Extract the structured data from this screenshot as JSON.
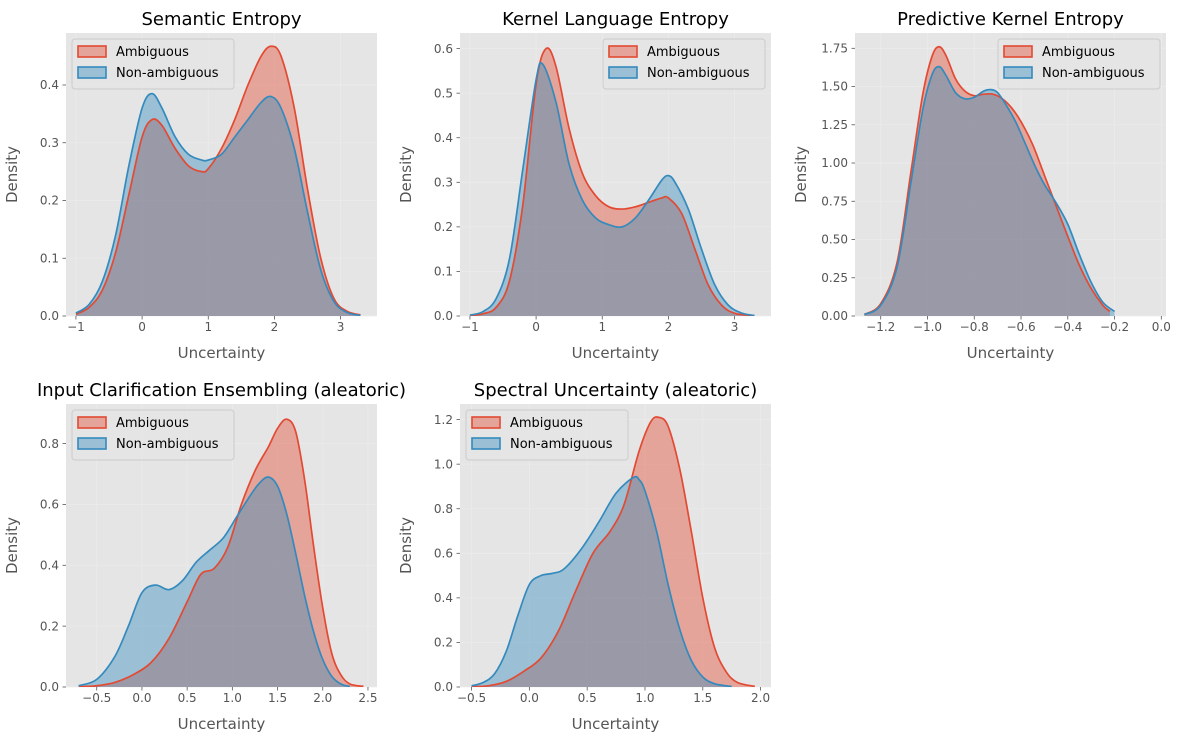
{
  "figure": {
    "colors": {
      "ambiguous_line": "#E24A33",
      "ambiguous_fill": "#E24A33",
      "non_ambiguous_line": "#348ABD",
      "non_ambiguous_fill": "#348ABD",
      "panel_bg": "#E5E5E5",
      "grid": "#EBEBEB",
      "text": "#555555"
    }
  },
  "chart_data": [
    {
      "type": "area",
      "title": "Semantic Entropy",
      "xlabel": "Uncertainty",
      "ylabel": "Density",
      "xlim": [
        -1.15,
        3.55
      ],
      "ylim": [
        0,
        0.49
      ],
      "xticks": [
        -1,
        0,
        1,
        2,
        3
      ],
      "xtick_labels": [
        "−1",
        "0",
        "1",
        "2",
        "3"
      ],
      "yticks": [
        0,
        0.1,
        0.2,
        0.3,
        0.4
      ],
      "ytick_labels": [
        "0.0",
        "0.1",
        "0.2",
        "0.3",
        "0.4"
      ],
      "legend": {
        "placement": "upper-left",
        "labels": [
          "Ambiguous",
          "Non-ambiguous"
        ]
      },
      "series": [
        {
          "name": "Ambiguous",
          "x": [
            -1,
            -0.8,
            -0.6,
            -0.4,
            -0.2,
            0,
            0.15,
            0.3,
            0.5,
            0.7,
            0.9,
            1.0,
            1.2,
            1.4,
            1.6,
            1.8,
            1.95,
            2.1,
            2.3,
            2.5,
            2.7,
            2.9,
            3.1,
            3.3
          ],
          "y": [
            0.003,
            0.015,
            0.045,
            0.11,
            0.21,
            0.31,
            0.34,
            0.33,
            0.29,
            0.26,
            0.25,
            0.255,
            0.29,
            0.34,
            0.4,
            0.45,
            0.467,
            0.45,
            0.36,
            0.22,
            0.1,
            0.03,
            0.008,
            0.002
          ]
        },
        {
          "name": "Non-ambiguous",
          "x": [
            -1,
            -0.8,
            -0.6,
            -0.4,
            -0.2,
            0,
            0.15,
            0.3,
            0.5,
            0.7,
            0.9,
            1.0,
            1.2,
            1.4,
            1.6,
            1.8,
            1.95,
            2.1,
            2.3,
            2.5,
            2.7,
            2.9,
            3.1,
            3.3
          ],
          "y": [
            0.005,
            0.02,
            0.06,
            0.14,
            0.26,
            0.36,
            0.385,
            0.36,
            0.31,
            0.28,
            0.27,
            0.27,
            0.28,
            0.31,
            0.34,
            0.37,
            0.38,
            0.36,
            0.29,
            0.18,
            0.08,
            0.025,
            0.006,
            0.001
          ]
        }
      ]
    },
    {
      "type": "area",
      "title": "Kernel Language Entropy",
      "xlabel": "Uncertainty",
      "ylabel": "Density",
      "xlim": [
        -1.15,
        3.55
      ],
      "ylim": [
        0,
        0.635
      ],
      "xticks": [
        -1,
        0,
        1,
        2,
        3
      ],
      "xtick_labels": [
        "−1",
        "0",
        "1",
        "2",
        "3"
      ],
      "yticks": [
        0,
        0.1,
        0.2,
        0.3,
        0.4,
        0.5,
        0.6
      ],
      "ytick_labels": [
        "0.0",
        "0.1",
        "0.2",
        "0.3",
        "0.4",
        "0.5",
        "0.6"
      ],
      "legend": {
        "placement": "upper-right",
        "labels": [
          "Ambiguous",
          "Non-ambiguous"
        ]
      },
      "series": [
        {
          "name": "Ambiguous",
          "x": [
            -1,
            -0.8,
            -0.6,
            -0.4,
            -0.2,
            0,
            0.15,
            0.3,
            0.5,
            0.7,
            0.9,
            1.1,
            1.3,
            1.5,
            1.7,
            1.9,
            2.0,
            2.2,
            2.4,
            2.6,
            2.8,
            3.0,
            3.3
          ],
          "y": [
            0.001,
            0.005,
            0.02,
            0.08,
            0.25,
            0.52,
            0.6,
            0.56,
            0.42,
            0.32,
            0.27,
            0.245,
            0.24,
            0.245,
            0.255,
            0.265,
            0.265,
            0.23,
            0.15,
            0.07,
            0.025,
            0.006,
            0.001
          ]
        },
        {
          "name": "Non-ambiguous",
          "x": [
            -1,
            -0.8,
            -0.6,
            -0.4,
            -0.2,
            0,
            0.1,
            0.3,
            0.5,
            0.7,
            0.9,
            1.1,
            1.3,
            1.5,
            1.7,
            1.9,
            2.0,
            2.1,
            2.3,
            2.5,
            2.7,
            2.9,
            3.1,
            3.3
          ],
          "y": [
            0.002,
            0.01,
            0.04,
            0.13,
            0.33,
            0.53,
            0.565,
            0.48,
            0.34,
            0.26,
            0.22,
            0.205,
            0.2,
            0.22,
            0.26,
            0.305,
            0.315,
            0.3,
            0.24,
            0.15,
            0.07,
            0.025,
            0.007,
            0.001
          ]
        }
      ]
    },
    {
      "type": "area",
      "title": "Predictive Kernel Entropy",
      "xlabel": "Uncertainty",
      "ylabel": "Density",
      "xlim": [
        -1.31,
        0.02
      ],
      "ylim": [
        0,
        1.85
      ],
      "xticks": [
        -1.2,
        -1.0,
        -0.8,
        -0.6,
        -0.4,
        -0.2,
        0.0
      ],
      "xtick_labels": [
        "−1.2",
        "−1.0",
        "−0.8",
        "−0.6",
        "−0.4",
        "−0.2",
        "0.0"
      ],
      "yticks": [
        0,
        0.25,
        0.5,
        0.75,
        1.0,
        1.25,
        1.5,
        1.75
      ],
      "ytick_labels": [
        "0.00",
        "0.25",
        "0.50",
        "0.75",
        "1.00",
        "1.25",
        "1.50",
        "1.75"
      ],
      "legend": {
        "placement": "upper-right",
        "labels": [
          "Ambiguous",
          "Non-ambiguous"
        ]
      },
      "series": [
        {
          "name": "Ambiguous",
          "x": [
            -1.27,
            -1.2,
            -1.13,
            -1.07,
            -1.02,
            -0.98,
            -0.95,
            -0.92,
            -0.88,
            -0.84,
            -0.8,
            -0.76,
            -0.72,
            -0.68,
            -0.64,
            -0.6,
            -0.55,
            -0.5,
            -0.45,
            -0.4,
            -0.35,
            -0.3,
            -0.25,
            -0.22
          ],
          "y": [
            0.01,
            0.08,
            0.35,
            0.95,
            1.45,
            1.7,
            1.76,
            1.7,
            1.55,
            1.47,
            1.44,
            1.45,
            1.45,
            1.42,
            1.36,
            1.27,
            1.12,
            0.92,
            0.72,
            0.52,
            0.33,
            0.18,
            0.07,
            0.03
          ]
        },
        {
          "name": "Non-ambiguous",
          "x": [
            -1.27,
            -1.2,
            -1.13,
            -1.07,
            -1.02,
            -0.98,
            -0.95,
            -0.92,
            -0.88,
            -0.84,
            -0.8,
            -0.76,
            -0.73,
            -0.7,
            -0.66,
            -0.62,
            -0.58,
            -0.54,
            -0.5,
            -0.45,
            -0.4,
            -0.35,
            -0.3,
            -0.25,
            -0.2
          ],
          "y": [
            0.01,
            0.07,
            0.32,
            0.88,
            1.35,
            1.58,
            1.63,
            1.57,
            1.46,
            1.42,
            1.43,
            1.47,
            1.48,
            1.46,
            1.37,
            1.26,
            1.12,
            0.98,
            0.86,
            0.74,
            0.6,
            0.4,
            0.22,
            0.09,
            0.03
          ]
        }
      ]
    },
    {
      "type": "area",
      "title": "Input Clarification Ensembling (aleatoric)",
      "xlabel": "Uncertainty",
      "ylabel": "Density",
      "xlim": [
        -0.84,
        2.6
      ],
      "ylim": [
        0,
        0.93
      ],
      "xticks": [
        -0.5,
        0,
        0.5,
        1.0,
        1.5,
        2.0,
        2.5
      ],
      "xtick_labels": [
        "−0.5",
        "0.0",
        "0.5",
        "1.0",
        "1.5",
        "2.0",
        "2.5"
      ],
      "yticks": [
        0,
        0.2,
        0.4,
        0.6,
        0.8
      ],
      "ytick_labels": [
        "0.0",
        "0.2",
        "0.4",
        "0.6",
        "0.8"
      ],
      "legend": {
        "placement": "upper-left",
        "labels": [
          "Ambiguous",
          "Non-ambiguous"
        ]
      },
      "series": [
        {
          "name": "Ambiguous",
          "x": [
            -0.7,
            -0.5,
            -0.3,
            -0.1,
            0.1,
            0.3,
            0.5,
            0.65,
            0.8,
            0.95,
            1.1,
            1.25,
            1.4,
            1.5,
            1.6,
            1.7,
            1.8,
            1.9,
            2.0,
            2.1,
            2.2,
            2.3,
            2.45
          ],
          "y": [
            0.001,
            0.004,
            0.015,
            0.04,
            0.08,
            0.16,
            0.28,
            0.37,
            0.39,
            0.46,
            0.6,
            0.71,
            0.79,
            0.85,
            0.88,
            0.84,
            0.68,
            0.46,
            0.26,
            0.11,
            0.04,
            0.01,
            0.002
          ]
        },
        {
          "name": "Non-ambiguous",
          "x": [
            -0.7,
            -0.5,
            -0.3,
            -0.15,
            0.0,
            0.15,
            0.3,
            0.45,
            0.6,
            0.75,
            0.9,
            1.05,
            1.2,
            1.3,
            1.4,
            1.5,
            1.6,
            1.7,
            1.8,
            1.9,
            2.0,
            2.1,
            2.2,
            2.3
          ],
          "y": [
            0.004,
            0.025,
            0.1,
            0.2,
            0.31,
            0.335,
            0.32,
            0.35,
            0.41,
            0.45,
            0.49,
            0.56,
            0.63,
            0.67,
            0.69,
            0.66,
            0.57,
            0.44,
            0.3,
            0.18,
            0.09,
            0.035,
            0.01,
            0.002
          ]
        }
      ]
    },
    {
      "type": "area",
      "title": "Spectral Uncertainty (aleatoric)",
      "xlabel": "Uncertainty",
      "ylabel": "Density",
      "xlim": [
        -0.6,
        2.09
      ],
      "ylim": [
        0,
        1.27
      ],
      "xticks": [
        -0.5,
        0,
        0.5,
        1.0,
        1.5,
        2.0
      ],
      "xtick_labels": [
        "−0.5",
        "0.0",
        "0.5",
        "1.0",
        "1.5",
        "2.0"
      ],
      "yticks": [
        0,
        0.2,
        0.4,
        0.6,
        0.8,
        1.0,
        1.2
      ],
      "ytick_labels": [
        "0.0",
        "0.2",
        "0.4",
        "0.6",
        "0.8",
        "1.0",
        "1.2"
      ],
      "legend": {
        "placement": "upper-left",
        "labels": [
          "Ambiguous",
          "Non-ambiguous"
        ]
      },
      "series": [
        {
          "name": "Ambiguous",
          "x": [
            -0.5,
            -0.35,
            -0.2,
            -0.05,
            0.1,
            0.25,
            0.4,
            0.55,
            0.7,
            0.82,
            0.95,
            1.05,
            1.12,
            1.2,
            1.3,
            1.4,
            1.5,
            1.6,
            1.7,
            1.8,
            1.95
          ],
          "y": [
            0.001,
            0.006,
            0.025,
            0.07,
            0.13,
            0.25,
            0.43,
            0.6,
            0.7,
            0.82,
            1.06,
            1.19,
            1.21,
            1.17,
            0.98,
            0.7,
            0.4,
            0.18,
            0.07,
            0.02,
            0.003
          ]
        },
        {
          "name": "Non-ambiguous",
          "x": [
            -0.5,
            -0.4,
            -0.3,
            -0.2,
            -0.1,
            0.0,
            0.1,
            0.2,
            0.3,
            0.45,
            0.6,
            0.75,
            0.9,
            0.95,
            1.0,
            1.1,
            1.2,
            1.3,
            1.4,
            1.5,
            1.6,
            1.75
          ],
          "y": [
            0.005,
            0.02,
            0.06,
            0.16,
            0.32,
            0.46,
            0.5,
            0.51,
            0.53,
            0.62,
            0.74,
            0.87,
            0.94,
            0.93,
            0.88,
            0.7,
            0.46,
            0.26,
            0.12,
            0.045,
            0.015,
            0.002
          ]
        }
      ]
    }
  ]
}
